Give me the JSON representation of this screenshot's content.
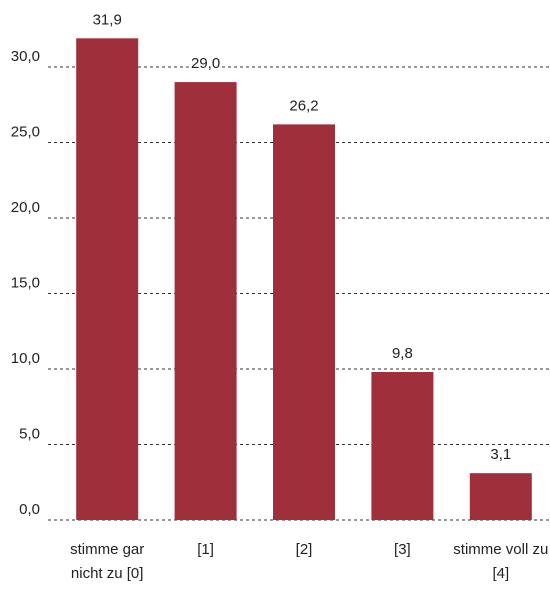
{
  "chart_data": {
    "type": "bar",
    "categories": [
      "stimme gar nicht zu [0]",
      "[1]",
      "[2]",
      "[3]",
      "stimme voll zu [4]"
    ],
    "values": [
      31.9,
      29.0,
      26.2,
      9.8,
      3.1
    ],
    "value_labels": [
      "31,9",
      "29,0",
      "26,2",
      "9,8",
      "3,1"
    ],
    "color": "#a02f3c",
    "ylim": [
      0,
      34
    ],
    "yticks": [
      {
        "value": 0,
        "label": "0,0"
      },
      {
        "value": 5,
        "label": "5,0"
      },
      {
        "value": 10,
        "label": "10,0"
      },
      {
        "value": 15,
        "label": "15,0"
      },
      {
        "value": 20,
        "label": "20,0"
      },
      {
        "value": 25,
        "label": "25,0"
      },
      {
        "value": 30,
        "label": "30,0"
      }
    ],
    "grid": true
  }
}
